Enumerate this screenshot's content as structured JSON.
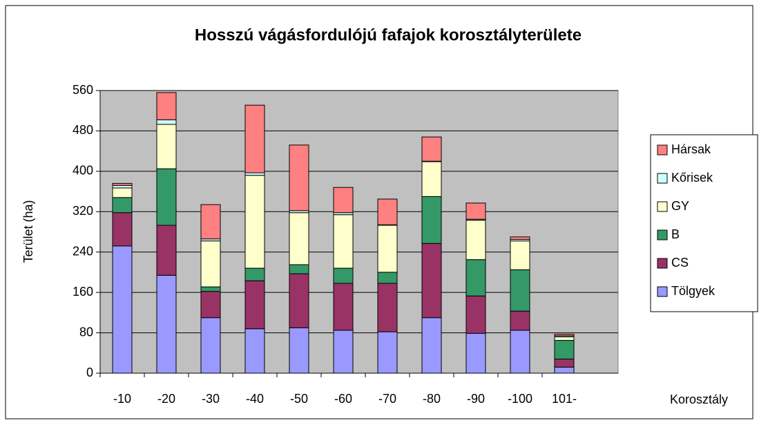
{
  "chart_data": {
    "type": "stacked_bar",
    "title": "Hosszú vágásfordulójú fafajok korosztályterülete",
    "x_label": "Korosztály",
    "y_label": "Terület (ha)",
    "categories": [
      "-10",
      "-20",
      "-30",
      "-40",
      "-50",
      "-60",
      "-70",
      "-80",
      "-90",
      "-100",
      "101-"
    ],
    "series": [
      {
        "name": "Tölgyek",
        "color": "#9999ff",
        "values": [
          252,
          194,
          110,
          88,
          90,
          85,
          82,
          110,
          79,
          85,
          12
        ]
      },
      {
        "name": "CS",
        "color": "#993366",
        "values": [
          66,
          99,
          52,
          95,
          107,
          93,
          96,
          147,
          74,
          38,
          16
        ]
      },
      {
        "name": "B",
        "color": "#339966",
        "values": [
          30,
          112,
          9,
          25,
          18,
          30,
          22,
          93,
          72,
          82,
          37
        ]
      },
      {
        "name": "GY",
        "color": "#ffffcc",
        "values": [
          19,
          88,
          91,
          184,
          103,
          106,
          93,
          69,
          78,
          57,
          7
        ]
      },
      {
        "name": "Kőrisek",
        "color": "#ccffff",
        "values": [
          5,
          9,
          4,
          5,
          4,
          4,
          1,
          1,
          2,
          3,
          2
        ]
      },
      {
        "name": "Hársak",
        "color": "#ff8080",
        "values": [
          4,
          54,
          68,
          134,
          130,
          50,
          51,
          48,
          32,
          5,
          3
        ]
      }
    ],
    "ylim": [
      0,
      560
    ],
    "yticks": [
      0,
      80,
      160,
      240,
      320,
      400,
      480,
      560
    ],
    "grid": true,
    "legend": "right",
    "background": "#c0c0c0"
  }
}
